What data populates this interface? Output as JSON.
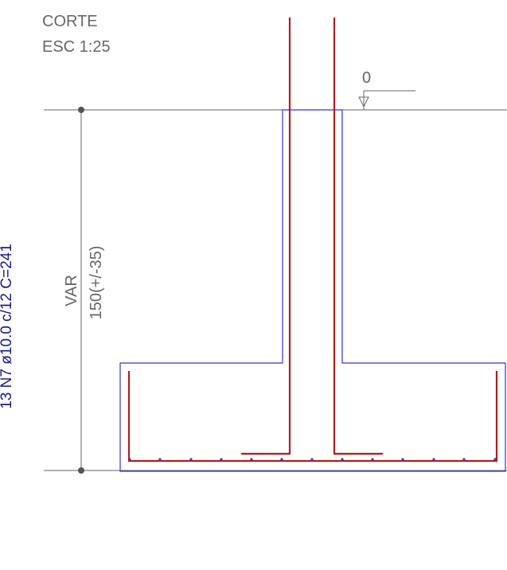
{
  "section": {
    "title": "CORTE",
    "scale": "ESC 1:25"
  },
  "level": {
    "value": "0"
  },
  "dimension": {
    "label_var": "VAR",
    "label_height": "150(+/-35)"
  },
  "rebar": {
    "label": "13 N7 ø10.0 c/12 C=241"
  },
  "colors": {
    "concrete_outline": "#3333dd",
    "rebar": "#b01e1e",
    "dimension": "#666666",
    "text": "#666666",
    "rebar_text": "#1a1a8c"
  }
}
